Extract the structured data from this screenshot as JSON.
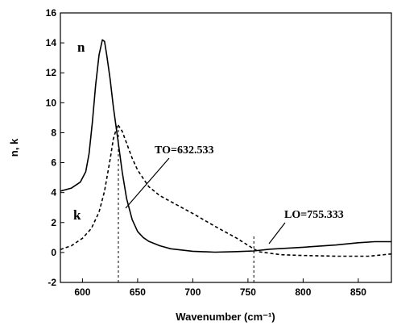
{
  "chart_data": {
    "type": "line",
    "title": "",
    "xlabel": "Wavenumber (cm⁻¹)",
    "ylabel": "n, k",
    "xlim": [
      580,
      880
    ],
    "ylim": [
      -2,
      16
    ],
    "x_ticks": [
      600,
      650,
      700,
      750,
      800,
      850
    ],
    "y_ticks": [
      -2,
      0,
      2,
      4,
      6,
      8,
      10,
      12,
      14,
      16
    ],
    "grid": false,
    "series": [
      {
        "name": "n",
        "style": "solid",
        "color": "#000000",
        "points": [
          [
            580,
            4.1
          ],
          [
            590,
            4.3
          ],
          [
            598,
            4.7
          ],
          [
            603,
            5.4
          ],
          [
            606,
            6.6
          ],
          [
            609,
            8.7
          ],
          [
            612,
            11.2
          ],
          [
            615,
            13.2
          ],
          [
            618,
            14.2
          ],
          [
            620,
            14.1
          ],
          [
            622,
            13.2
          ],
          [
            625,
            11.6
          ],
          [
            628,
            9.7
          ],
          [
            632,
            7.6
          ],
          [
            636,
            5.4
          ],
          [
            640,
            3.6
          ],
          [
            645,
            2.2
          ],
          [
            650,
            1.4
          ],
          [
            655,
            1.0
          ],
          [
            660,
            0.75
          ],
          [
            670,
            0.45
          ],
          [
            680,
            0.25
          ],
          [
            700,
            0.08
          ],
          [
            720,
            0.02
          ],
          [
            740,
            0.06
          ],
          [
            755,
            0.1
          ],
          [
            770,
            0.22
          ],
          [
            800,
            0.35
          ],
          [
            830,
            0.5
          ],
          [
            850,
            0.65
          ],
          [
            865,
            0.72
          ],
          [
            880,
            0.72
          ]
        ]
      },
      {
        "name": "k",
        "style": "dashed",
        "color": "#000000",
        "points": [
          [
            580,
            0.2
          ],
          [
            590,
            0.45
          ],
          [
            600,
            0.95
          ],
          [
            608,
            1.6
          ],
          [
            615,
            2.7
          ],
          [
            620,
            4.1
          ],
          [
            625,
            6.2
          ],
          [
            628,
            7.6
          ],
          [
            632,
            8.55
          ],
          [
            636,
            8.1
          ],
          [
            640,
            7.3
          ],
          [
            645,
            6.3
          ],
          [
            650,
            5.5
          ],
          [
            660,
            4.4
          ],
          [
            670,
            3.8
          ],
          [
            680,
            3.4
          ],
          [
            700,
            2.6
          ],
          [
            720,
            1.75
          ],
          [
            740,
            0.95
          ],
          [
            755,
            0.25
          ],
          [
            760,
            0.05
          ],
          [
            780,
            -0.15
          ],
          [
            800,
            -0.2
          ],
          [
            830,
            -0.25
          ],
          [
            860,
            -0.25
          ],
          [
            880,
            -0.1
          ]
        ]
      }
    ],
    "annotations": [
      {
        "text": "TO=632.533",
        "x": 632.533,
        "marker": "vertical-dashed"
      },
      {
        "text": "LO=755.333",
        "x": 755.333,
        "marker": "vertical-dashed"
      }
    ]
  }
}
